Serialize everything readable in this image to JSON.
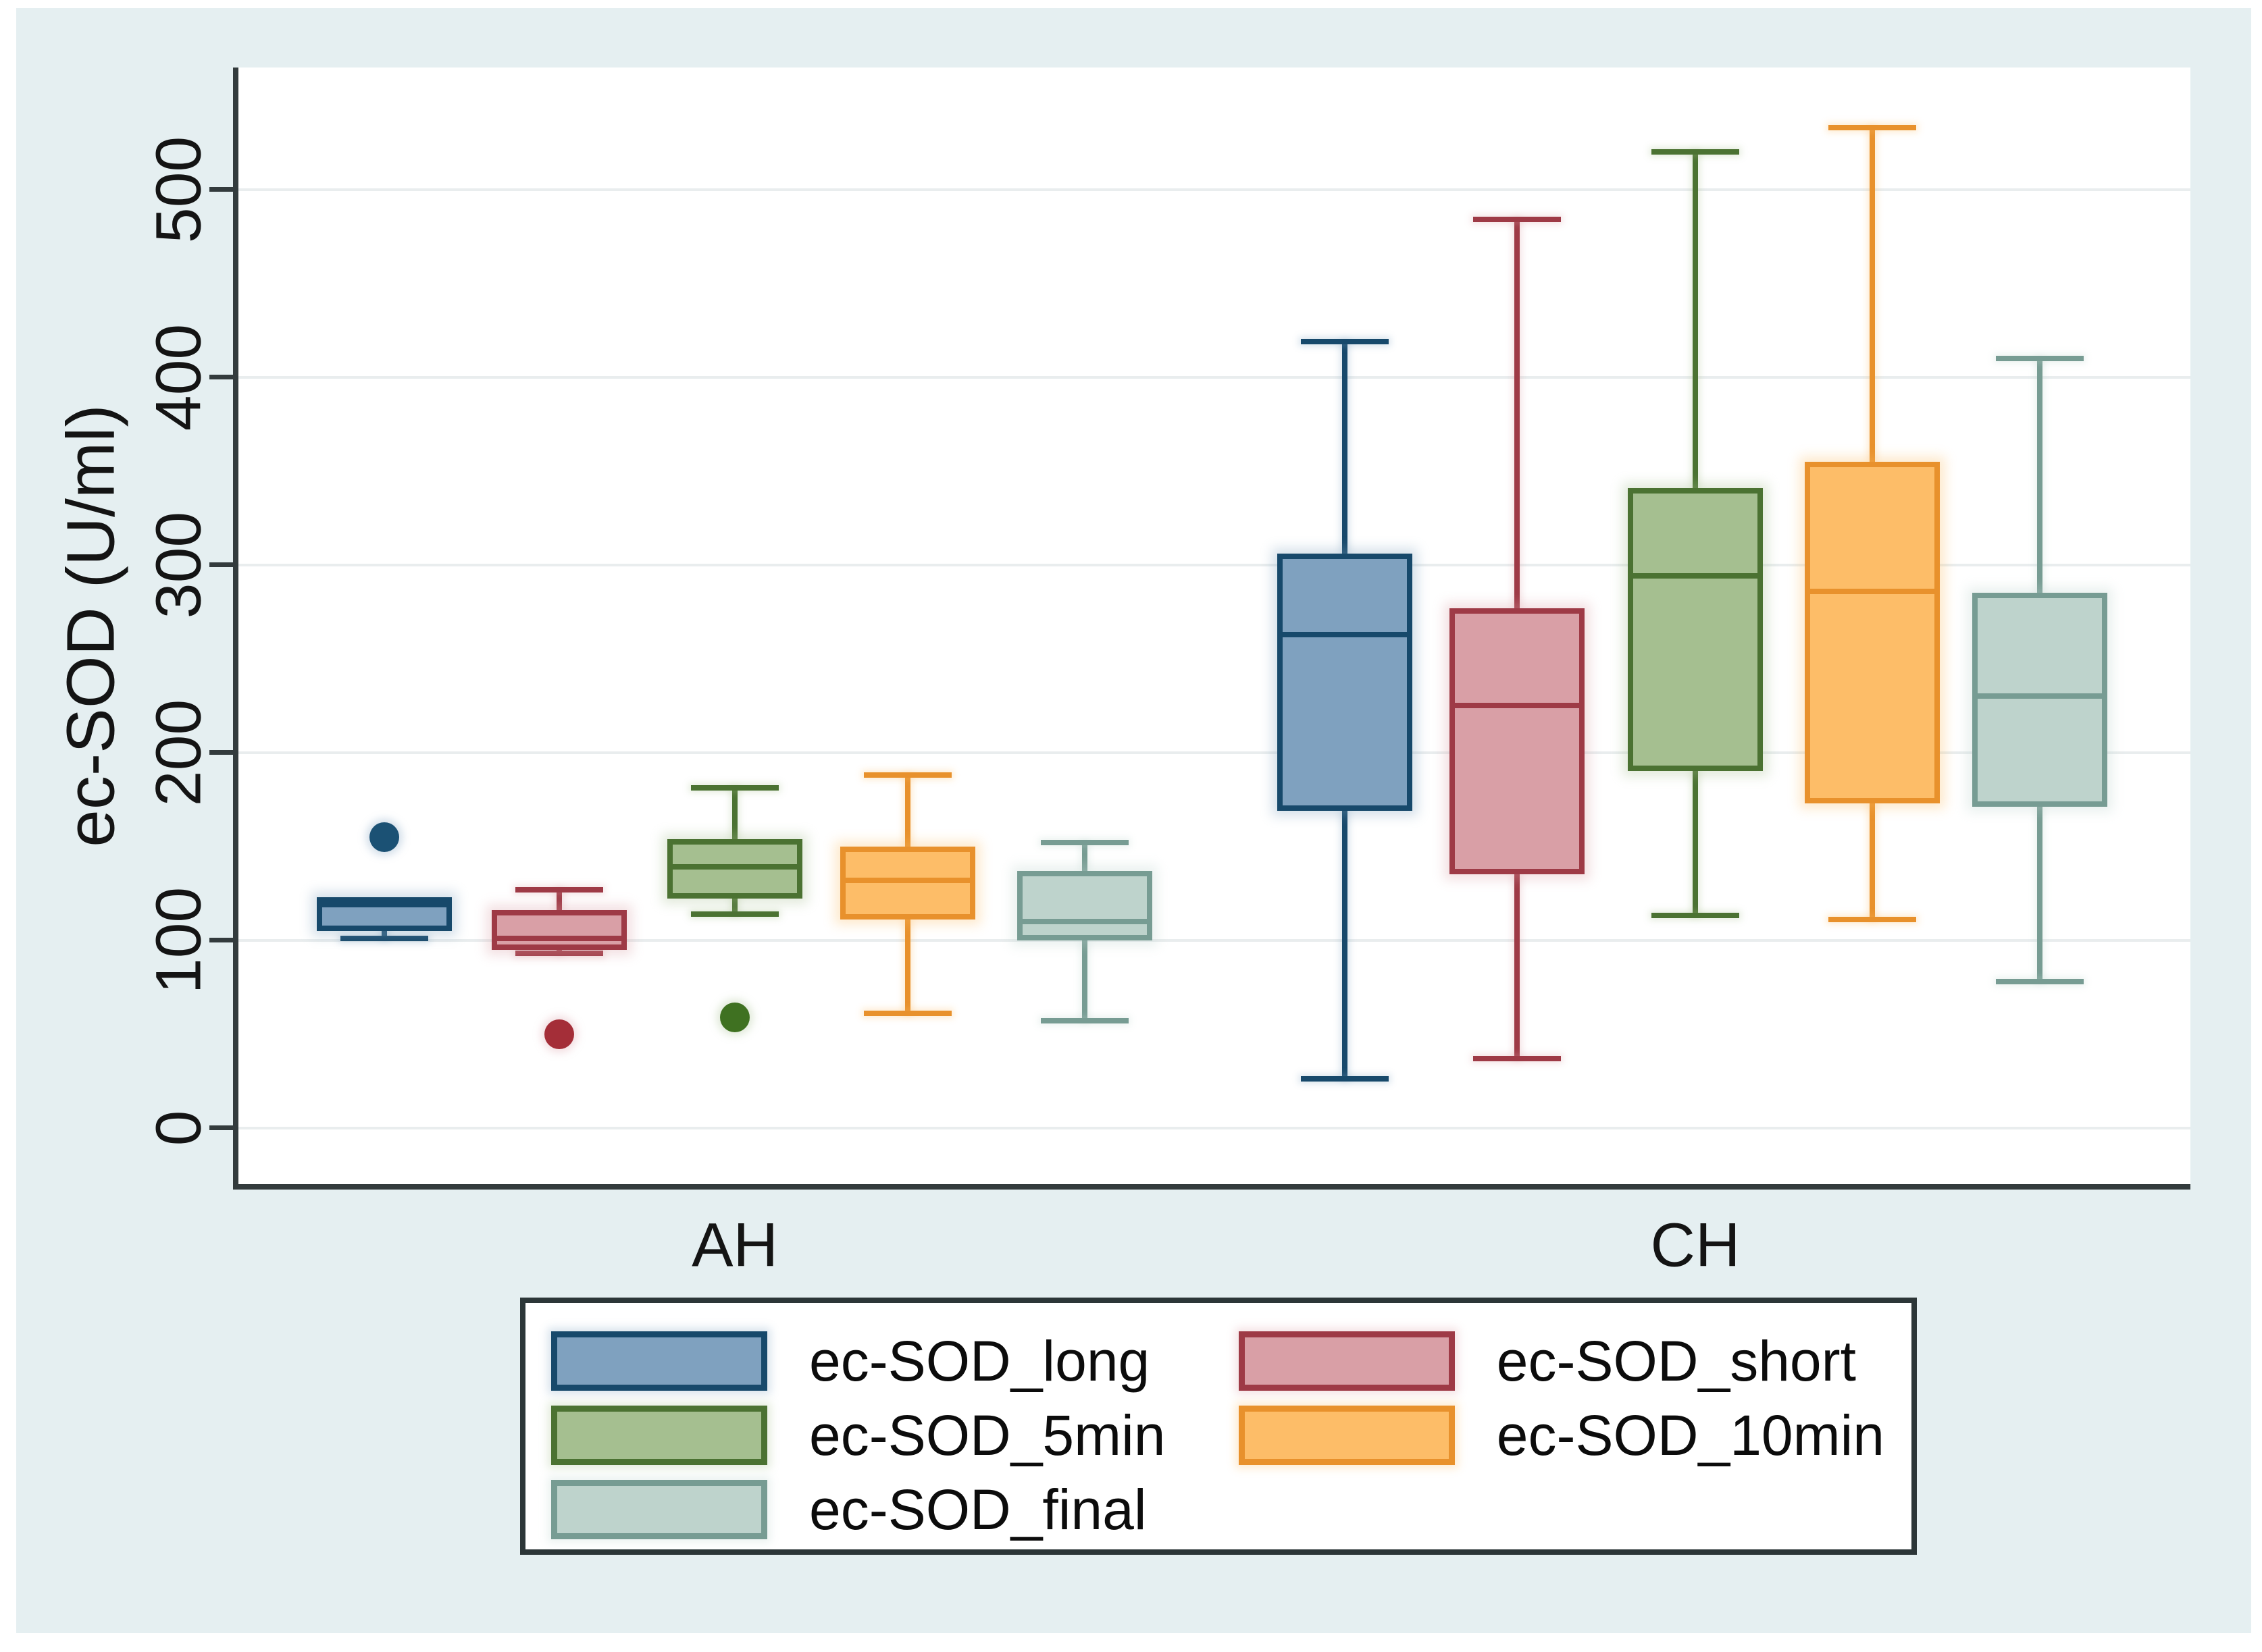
{
  "chart_data": {
    "type": "boxplot",
    "title": "",
    "ylabel": "ec-SOD (U/ml)",
    "xlabel": "",
    "yticks": [
      0,
      100,
      200,
      300,
      400,
      500
    ],
    "ylim": [
      -30,
      565
    ],
    "y_tick_rotation": 90,
    "grid": "horizontal-only",
    "legend_position": "bottom",
    "groups": [
      "AH",
      "CH"
    ],
    "series": [
      {
        "name": "ec-SOD_long",
        "fill": "#7fa1bf",
        "stroke": "#17496b",
        "outlier_color": "#1b5174",
        "boxes": [
          {
            "group": "AH",
            "whisker_low": 101,
            "q1": 105,
            "median": 119,
            "q3": 123,
            "whisker_high": 123,
            "outliers": [
              155
            ]
          },
          {
            "group": "CH",
            "whisker_low": 26,
            "q1": 169,
            "median": 263,
            "q3": 306,
            "whisker_high": 419,
            "outliers": []
          }
        ]
      },
      {
        "name": "ec-SOD_short",
        "fill": "#d99fa6",
        "stroke": "#9e3a46",
        "outlier_color": "#a42e38",
        "boxes": [
          {
            "group": "AH",
            "whisker_low": 93,
            "q1": 95,
            "median": 101,
            "q3": 116,
            "whisker_high": 127,
            "outliers": [
              50
            ]
          },
          {
            "group": "CH",
            "whisker_low": 37,
            "q1": 135,
            "median": 225,
            "q3": 277,
            "whisker_high": 484,
            "outliers": []
          }
        ]
      },
      {
        "name": "ec-SOD_5min",
        "fill": "#a5bf90",
        "stroke": "#4b7232",
        "outlier_color": "#3f7121",
        "boxes": [
          {
            "group": "AH",
            "whisker_low": 114,
            "q1": 122,
            "median": 139,
            "q3": 154,
            "whisker_high": 181,
            "outliers": [
              59
            ]
          },
          {
            "group": "CH",
            "whisker_low": 113,
            "q1": 190,
            "median": 294,
            "q3": 341,
            "whisker_high": 520,
            "outliers": []
          }
        ]
      },
      {
        "name": "ec-SOD_10min",
        "fill": "#fdbd68",
        "stroke": "#e8912c",
        "outlier_color": "#e8912c",
        "boxes": [
          {
            "group": "AH",
            "whisker_low": 61,
            "q1": 111,
            "median": 132,
            "q3": 150,
            "whisker_high": 188,
            "outliers": []
          },
          {
            "group": "CH",
            "whisker_low": 111,
            "q1": 173,
            "median": 286,
            "q3": 355,
            "whisker_high": 533,
            "outliers": []
          }
        ]
      },
      {
        "name": "ec-SOD_final",
        "fill": "#bed3cc",
        "stroke": "#779c93",
        "outlier_color": "#779c93",
        "boxes": [
          {
            "group": "AH",
            "whisker_low": 57,
            "q1": 100,
            "median": 110,
            "q3": 137,
            "whisker_high": 152,
            "outliers": []
          },
          {
            "group": "CH",
            "whisker_low": 78,
            "q1": 171,
            "median": 230,
            "q3": 285,
            "whisker_high": 410,
            "outliers": []
          }
        ]
      }
    ],
    "colors": {
      "figure_background": "#e5eff1",
      "plot_background": "#ffffff",
      "gridline": "#e9edee",
      "axis": "#333b3d",
      "legend_border": "#2c3638",
      "text": "#141414"
    }
  }
}
